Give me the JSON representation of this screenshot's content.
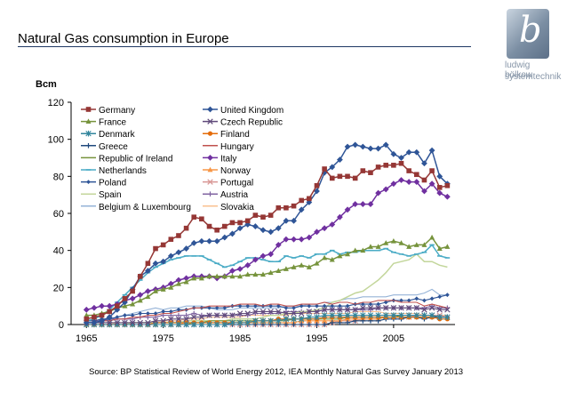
{
  "slide": {
    "title": "Natural Gas consumption in Europe",
    "source": "Source: BP Statistical Review of World Energy 2012, IEA Monthly Natural Gas Survey January 2013",
    "logo_line1": "ludwig bölkow",
    "logo_line2": "systemtechnik",
    "logo_letter": "b"
  },
  "chart_data": {
    "type": "line",
    "title": "",
    "ylabel": "Bcm",
    "xlabel": "",
    "xlim": [
      1965,
      2012
    ],
    "ylim": [
      0,
      120
    ],
    "x_ticks": [
      1965,
      1975,
      1985,
      1995,
      2005
    ],
    "y_ticks": [
      0,
      20,
      40,
      60,
      80,
      100,
      120
    ],
    "grid": false,
    "legend": "top-left, two columns",
    "x": [
      1965,
      1966,
      1967,
      1968,
      1969,
      1970,
      1971,
      1972,
      1973,
      1974,
      1975,
      1976,
      1977,
      1978,
      1979,
      1980,
      1981,
      1982,
      1983,
      1984,
      1985,
      1986,
      1987,
      1988,
      1989,
      1990,
      1991,
      1992,
      1993,
      1994,
      1995,
      1996,
      1997,
      1998,
      1999,
      2000,
      2001,
      2002,
      2003,
      2004,
      2005,
      2006,
      2007,
      2008,
      2009,
      2010,
      2011,
      2012
    ],
    "series": [
      {
        "name": "Germany",
        "color": "#953735",
        "marker": "square",
        "values": [
          3,
          4,
          5,
          7,
          10,
          14,
          18,
          26,
          33,
          41,
          43,
          46,
          48,
          52,
          58,
          57,
          53,
          51,
          53,
          55,
          55,
          56,
          59,
          58,
          59,
          63,
          63,
          64,
          67,
          68,
          75,
          84,
          79,
          80,
          80,
          79,
          83,
          82,
          85,
          86,
          86,
          87,
          83,
          81,
          78,
          83,
          74,
          75
        ]
      },
      {
        "name": "United Kingdom",
        "color": "#2f5597",
        "marker": "diamond",
        "values": [
          1,
          1,
          2,
          4,
          8,
          12,
          19,
          26,
          29,
          33,
          34,
          37,
          39,
          41,
          44,
          45,
          45,
          45,
          47,
          49,
          52,
          54,
          53,
          51,
          50,
          52,
          56,
          56,
          62,
          66,
          72,
          82,
          85,
          89,
          96,
          97,
          96,
          95,
          95,
          97,
          92,
          90,
          93,
          93,
          87,
          94,
          80,
          76
        ]
      },
      {
        "name": "France",
        "color": "#76933c",
        "marker": "triangle",
        "values": [
          5,
          5,
          6,
          7,
          9,
          10,
          11,
          13,
          15,
          18,
          19,
          20,
          22,
          23,
          25,
          25,
          26,
          26,
          26,
          26,
          26,
          27,
          27,
          27,
          28,
          29,
          30,
          31,
          32,
          31,
          33,
          36,
          35,
          37,
          38,
          40,
          40,
          42,
          42,
          44,
          45,
          44,
          42,
          43,
          43,
          47,
          41,
          42
        ]
      },
      {
        "name": "Czech Republic",
        "color": "#5f497a",
        "marker": "x",
        "values": [
          1,
          1,
          1,
          1,
          1,
          1,
          1,
          1,
          1,
          2,
          2,
          3,
          3,
          3,
          4,
          4,
          5,
          5,
          5,
          5,
          6,
          6,
          7,
          7,
          7,
          7,
          6,
          6,
          6,
          7,
          7,
          8,
          8,
          8,
          8,
          8,
          9,
          9,
          9,
          9,
          9,
          9,
          9,
          9,
          8,
          9,
          8,
          8
        ]
      },
      {
        "name": "Denmark",
        "color": "#31859c",
        "marker": "star",
        "values": [
          0,
          0,
          0,
          0,
          0,
          0,
          0,
          0,
          0,
          0,
          0,
          0,
          0,
          0,
          0,
          0,
          0,
          0,
          0,
          1,
          1,
          1,
          2,
          2,
          2,
          2,
          3,
          3,
          3,
          4,
          4,
          5,
          5,
          5,
          5,
          5,
          5,
          5,
          5,
          5,
          5,
          5,
          5,
          5,
          5,
          5,
          4,
          4
        ]
      },
      {
        "name": "Finland",
        "color": "#e46c0a",
        "marker": "circle",
        "values": [
          0,
          0,
          0,
          0,
          0,
          0,
          0,
          0,
          0,
          1,
          1,
          1,
          1,
          1,
          1,
          1,
          1,
          1,
          1,
          1,
          1,
          1,
          2,
          2,
          2,
          3,
          3,
          3,
          3,
          3,
          3,
          4,
          4,
          4,
          4,
          4,
          4,
          4,
          4,
          4,
          4,
          4,
          4,
          4,
          4,
          4,
          3,
          3
        ]
      },
      {
        "name": "Greece",
        "color": "#1f497d",
        "marker": "plus",
        "values": [
          0,
          0,
          0,
          0,
          0,
          0,
          0,
          0,
          0,
          0,
          0,
          0,
          0,
          0,
          0,
          0,
          0,
          0,
          0,
          0,
          0,
          0,
          0,
          0,
          0,
          0,
          0,
          0,
          0,
          0,
          0,
          0,
          1,
          1,
          1,
          2,
          2,
          2,
          2,
          3,
          3,
          3,
          4,
          4,
          3,
          4,
          4,
          4
        ]
      },
      {
        "name": "Hungary",
        "color": "#c0504d",
        "marker": "none",
        "values": [
          1,
          1,
          2,
          2,
          3,
          3,
          4,
          4,
          5,
          5,
          6,
          6,
          7,
          8,
          9,
          9,
          10,
          10,
          10,
          10,
          11,
          11,
          11,
          10,
          11,
          11,
          10,
          10,
          11,
          11,
          11,
          12,
          11,
          12,
          12,
          11,
          12,
          12,
          13,
          13,
          13,
          12,
          12,
          12,
          10,
          11,
          10,
          9
        ]
      },
      {
        "name": "Republic of Ireland",
        "color": "#77933c",
        "marker": "none",
        "values": [
          0,
          0,
          0,
          0,
          0,
          0,
          0,
          0,
          0,
          0,
          0,
          0,
          0,
          0,
          1,
          1,
          2,
          2,
          2,
          2,
          2,
          2,
          2,
          2,
          2,
          2,
          2,
          3,
          3,
          3,
          3,
          3,
          3,
          3,
          4,
          4,
          4,
          4,
          4,
          4,
          4,
          5,
          5,
          5,
          5,
          5,
          4,
          4
        ]
      },
      {
        "name": "Italy",
        "color": "#7030a0",
        "marker": "diamond",
        "values": [
          8,
          9,
          10,
          10,
          11,
          13,
          14,
          16,
          18,
          19,
          20,
          22,
          24,
          25,
          26,
          26,
          26,
          25,
          26,
          29,
          30,
          32,
          35,
          37,
          38,
          43,
          46,
          46,
          46,
          47,
          50,
          52,
          54,
          58,
          62,
          65,
          65,
          65,
          71,
          73,
          76,
          78,
          77,
          77,
          72,
          76,
          71,
          69
        ]
      },
      {
        "name": "Netherlands",
        "color": "#4bacc6",
        "marker": "dash",
        "values": [
          2,
          3,
          5,
          8,
          12,
          16,
          20,
          24,
          28,
          31,
          33,
          35,
          36,
          37,
          37,
          37,
          35,
          33,
          31,
          32,
          34,
          36,
          36,
          35,
          34,
          34,
          37,
          36,
          37,
          36,
          38,
          38,
          40,
          38,
          39,
          39,
          40,
          40,
          40,
          41,
          39,
          38,
          37,
          38,
          39,
          43,
          37,
          36
        ]
      },
      {
        "name": "Norway",
        "color": "#f79646",
        "marker": "triangle",
        "values": [
          0,
          0,
          0,
          0,
          0,
          0,
          0,
          0,
          0,
          0,
          0,
          0,
          0,
          1,
          1,
          1,
          1,
          1,
          1,
          1,
          1,
          1,
          1,
          1,
          1,
          1,
          1,
          1,
          2,
          2,
          2,
          2,
          2,
          2,
          3,
          3,
          3,
          3,
          3,
          4,
          4,
          4,
          4,
          4,
          4,
          4,
          4,
          4
        ]
      },
      {
        "name": "Poland",
        "color": "#2f5597",
        "marker": "diamond-small",
        "values": [
          2,
          2,
          3,
          3,
          4,
          5,
          5,
          6,
          6,
          6,
          7,
          7,
          8,
          8,
          9,
          9,
          9,
          9,
          9,
          10,
          10,
          10,
          10,
          10,
          10,
          10,
          9,
          9,
          10,
          10,
          10,
          10,
          10,
          10,
          10,
          11,
          11,
          11,
          11,
          12,
          13,
          13,
          13,
          14,
          13,
          14,
          15,
          16
        ]
      },
      {
        "name": "Portugal",
        "color": "#d99694",
        "marker": "x",
        "values": [
          0,
          0,
          0,
          0,
          0,
          0,
          0,
          0,
          0,
          0,
          0,
          0,
          0,
          0,
          0,
          0,
          0,
          0,
          0,
          0,
          0,
          0,
          0,
          0,
          0,
          0,
          0,
          0,
          0,
          0,
          0,
          0,
          1,
          2,
          2,
          2,
          3,
          3,
          3,
          4,
          4,
          4,
          4,
          5,
          5,
          5,
          5,
          4
        ]
      },
      {
        "name": "Spain",
        "color": "#c3d69b",
        "marker": "none",
        "values": [
          0,
          0,
          0,
          0,
          0,
          0,
          1,
          1,
          1,
          1,
          1,
          1,
          1,
          2,
          2,
          2,
          2,
          2,
          2,
          3,
          3,
          3,
          3,
          4,
          5,
          5,
          6,
          6,
          7,
          7,
          8,
          9,
          12,
          13,
          15,
          17,
          18,
          21,
          24,
          28,
          33,
          34,
          35,
          38,
          34,
          34,
          32,
          31
        ]
      },
      {
        "name": "Austria",
        "color": "#8064a2",
        "marker": "plus",
        "values": [
          2,
          2,
          2,
          3,
          3,
          3,
          3,
          4,
          4,
          4,
          5,
          5,
          5,
          5,
          6,
          5,
          5,
          5,
          5,
          5,
          5,
          5,
          6,
          6,
          6,
          6,
          7,
          7,
          7,
          7,
          7,
          8,
          8,
          8,
          8,
          8,
          8,
          8,
          9,
          9,
          9,
          9,
          9,
          9,
          9,
          10,
          9,
          9
        ]
      },
      {
        "name": "Belgium & Luxembourg",
        "color": "#95b3d7",
        "marker": "none",
        "values": [
          1,
          1,
          2,
          3,
          4,
          5,
          6,
          7,
          8,
          9,
          8,
          9,
          9,
          10,
          10,
          10,
          9,
          8,
          8,
          8,
          9,
          9,
          9,
          9,
          9,
          9,
          10,
          10,
          10,
          11,
          11,
          12,
          12,
          13,
          14,
          14,
          15,
          15,
          15,
          15,
          16,
          16,
          16,
          16,
          17,
          19,
          16,
          16
        ]
      },
      {
        "name": "Slovakia",
        "color": "#fac090",
        "marker": "none",
        "values": [
          0,
          0,
          0,
          0,
          1,
          1,
          1,
          1,
          1,
          2,
          2,
          2,
          2,
          3,
          3,
          3,
          4,
          4,
          4,
          4,
          4,
          5,
          5,
          5,
          5,
          5,
          5,
          6,
          6,
          6,
          6,
          6,
          6,
          6,
          6,
          7,
          7,
          7,
          7,
          6,
          6,
          6,
          6,
          6,
          5,
          5,
          5,
          5
        ]
      }
    ]
  }
}
